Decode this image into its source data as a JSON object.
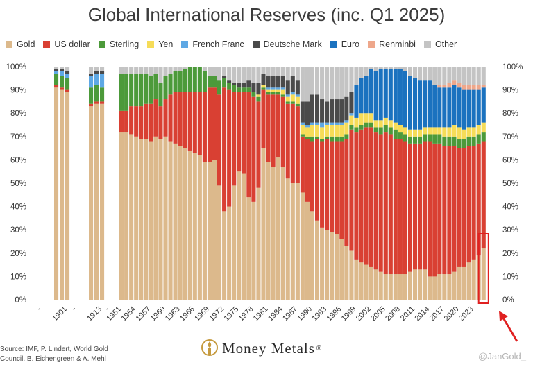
{
  "title": "Global International Reserves (inc. Q1 2025)",
  "source_line1": "Source: IMF, P. Lindert, World Gold",
  "source_line2": "Council, B. Eichengreen & A. Mehl",
  "brand": "Money Metals",
  "brand_mark": "®",
  "watermark": "@JanGold_",
  "chart_data": {
    "type": "bar",
    "stacked": true,
    "ylim": [
      0,
      100
    ],
    "yticks": [
      "0%",
      "10%",
      "20%",
      "30%",
      "40%",
      "50%",
      "60%",
      "70%",
      "80%",
      "90%",
      "100%"
    ],
    "xtick_labels": [
      "-",
      "1901",
      "-",
      "1913",
      "-",
      "1951",
      "1954",
      "1957",
      "1960",
      "1963",
      "1966",
      "1969",
      "1972",
      "1975",
      "1978",
      "1981",
      "1984",
      "1987",
      "1990",
      "1993",
      "1996",
      "1999",
      "2002",
      "2005",
      "2008",
      "2011",
      "2014",
      "2017",
      "2020",
      "2023"
    ],
    "legend": [
      {
        "name": "Gold",
        "color": "#dcb98c"
      },
      {
        "name": "US dollar",
        "color": "#d94033"
      },
      {
        "name": "Sterling",
        "color": "#4c9a3a"
      },
      {
        "name": "Yen",
        "color": "#f6dc58"
      },
      {
        "name": "French Franc",
        "color": "#5ea8e4"
      },
      {
        "name": "Deutsche Mark",
        "color": "#4a4a4a"
      },
      {
        "name": "Euro",
        "color": "#1b72bf"
      },
      {
        "name": "Renminbi",
        "color": "#eea78b"
      },
      {
        "name": "Other",
        "color": "#c4c4c4"
      }
    ],
    "series_order": [
      "Gold",
      "US dollar",
      "Sterling",
      "Yen",
      "French Franc",
      "Deutsche Mark",
      "Euro",
      "Renminbi",
      "Other"
    ],
    "highlight": {
      "category": "2025",
      "shape": "red box and arrow"
    },
    "bars": [
      {
        "year": "1899",
        "values": [
          91,
          1,
          5,
          0,
          1,
          1,
          0,
          0,
          1
        ]
      },
      {
        "year": "1900",
        "values": [
          90,
          1,
          5,
          0,
          2,
          1,
          0,
          0,
          1
        ]
      },
      {
        "year": "1901",
        "values": [
          89,
          1,
          5,
          0,
          2,
          1,
          0,
          0,
          2
        ]
      },
      {
        "year": "1911",
        "values": [
          83,
          1,
          7,
          0,
          5,
          1,
          0,
          0,
          3
        ]
      },
      {
        "year": "1912",
        "values": [
          84,
          1,
          7,
          0,
          5,
          1,
          0,
          0,
          2
        ]
      },
      {
        "year": "1913",
        "values": [
          84,
          1,
          6,
          0,
          6,
          1,
          0,
          0,
          2
        ]
      },
      {
        "year": "1951",
        "values": [
          72,
          9,
          16,
          0,
          0,
          0,
          0,
          0,
          3
        ]
      },
      {
        "year": "1952",
        "values": [
          72,
          9,
          16,
          0,
          0,
          0,
          0,
          0,
          3
        ]
      },
      {
        "year": "1953",
        "values": [
          71,
          12,
          14,
          0,
          0,
          0,
          0,
          0,
          3
        ]
      },
      {
        "year": "1954",
        "values": [
          70,
          13,
          14,
          0,
          0,
          0,
          0,
          0,
          3
        ]
      },
      {
        "year": "1955",
        "values": [
          69,
          14,
          14,
          0,
          0,
          0,
          0,
          0,
          3
        ]
      },
      {
        "year": "1956",
        "values": [
          69,
          15,
          13,
          0,
          0,
          0,
          0,
          0,
          3
        ]
      },
      {
        "year": "1957",
        "values": [
          68,
          16,
          12,
          0,
          0,
          0,
          0,
          0,
          4
        ]
      },
      {
        "year": "1958",
        "values": [
          70,
          16,
          11,
          0,
          0,
          0,
          0,
          0,
          3
        ]
      },
      {
        "year": "1959",
        "values": [
          69,
          14,
          10,
          0,
          0,
          0,
          0,
          0,
          7
        ]
      },
      {
        "year": "1960",
        "values": [
          70,
          16,
          10,
          0,
          0,
          0,
          0,
          0,
          4
        ]
      },
      {
        "year": "1961",
        "values": [
          68,
          20,
          9,
          0,
          0,
          0,
          0,
          0,
          3
        ]
      },
      {
        "year": "1962",
        "values": [
          67,
          22,
          9,
          0,
          0,
          0,
          0,
          0,
          2
        ]
      },
      {
        "year": "1963",
        "values": [
          66,
          23,
          9,
          0,
          0,
          0,
          0,
          0,
          2
        ]
      },
      {
        "year": "1964",
        "values": [
          65,
          24,
          10,
          0,
          0,
          0,
          0,
          0,
          1
        ]
      },
      {
        "year": "1965",
        "values": [
          64,
          25,
          11,
          0,
          0,
          0,
          0,
          0,
          0
        ]
      },
      {
        "year": "1966",
        "values": [
          63,
          26,
          11,
          0,
          0,
          0,
          0,
          0,
          0
        ]
      },
      {
        "year": "1967",
        "values": [
          62,
          27,
          11,
          0,
          0,
          0,
          0,
          0,
          0
        ]
      },
      {
        "year": "1968",
        "values": [
          59,
          30,
          9,
          0,
          0,
          0,
          0,
          0,
          2
        ]
      },
      {
        "year": "1969",
        "values": [
          59,
          32,
          5,
          0,
          0,
          0,
          0,
          0,
          4
        ]
      },
      {
        "year": "1970",
        "values": [
          60,
          31,
          5,
          0,
          0,
          0,
          0,
          0,
          4
        ]
      },
      {
        "year": "1971",
        "values": [
          49,
          39,
          6,
          0,
          0,
          0,
          0,
          0,
          6
        ]
      },
      {
        "year": "1972",
        "values": [
          38,
          53,
          4,
          0,
          0,
          1,
          0,
          0,
          4
        ]
      },
      {
        "year": "1973",
        "values": [
          40,
          50,
          3,
          0,
          0,
          1,
          0,
          0,
          6
        ]
      },
      {
        "year": "1974",
        "values": [
          49,
          40,
          3,
          0,
          0,
          1,
          0,
          0,
          7
        ]
      },
      {
        "year": "1975",
        "values": [
          55,
          34,
          2,
          0,
          0,
          2,
          0,
          0,
          7
        ]
      },
      {
        "year": "1976",
        "values": [
          54,
          35,
          2,
          0,
          0,
          2,
          0,
          0,
          7
        ]
      },
      {
        "year": "1977",
        "values": [
          44,
          45,
          2,
          0,
          0,
          3,
          0,
          0,
          6
        ]
      },
      {
        "year": "1978",
        "values": [
          42,
          45,
          2,
          0,
          0,
          4,
          0,
          0,
          7
        ]
      },
      {
        "year": "1979",
        "values": [
          48,
          37,
          2,
          1,
          0,
          5,
          0,
          0,
          7
        ]
      },
      {
        "year": "1980",
        "values": [
          65,
          25,
          1,
          1,
          0,
          5,
          0,
          0,
          3
        ]
      },
      {
        "year": "1981",
        "values": [
          59,
          29,
          1,
          1,
          1,
          5,
          0,
          0,
          4
        ]
      },
      {
        "year": "1982",
        "values": [
          57,
          31,
          1,
          1,
          1,
          5,
          0,
          0,
          4
        ]
      },
      {
        "year": "1983",
        "values": [
          61,
          27,
          1,
          1,
          1,
          5,
          0,
          0,
          4
        ]
      },
      {
        "year": "1984",
        "values": [
          57,
          30,
          1,
          2,
          1,
          5,
          0,
          0,
          4
        ]
      },
      {
        "year": "1985",
        "values": [
          52,
          32,
          1,
          2,
          1,
          6,
          0,
          0,
          6
        ]
      },
      {
        "year": "1986",
        "values": [
          50,
          34,
          1,
          3,
          1,
          7,
          0,
          0,
          4
        ]
      },
      {
        "year": "1987",
        "values": [
          50,
          33,
          1,
          3,
          1,
          6,
          0,
          0,
          6
        ]
      },
      {
        "year": "1988",
        "values": [
          46,
          24,
          1,
          4,
          1,
          9,
          0,
          0,
          15
        ]
      },
      {
        "year": "1989",
        "values": [
          42,
          27,
          1,
          4,
          1,
          10,
          0,
          0,
          15
        ]
      },
      {
        "year": "1990",
        "values": [
          38,
          30,
          2,
          5,
          1,
          12,
          0,
          0,
          12
        ]
      },
      {
        "year": "1991",
        "values": [
          34,
          35,
          1,
          5,
          1,
          12,
          0,
          0,
          12
        ]
      },
      {
        "year": "1992",
        "values": [
          31,
          37,
          1,
          5,
          2,
          10,
          0,
          0,
          14
        ]
      },
      {
        "year": "1993",
        "values": [
          30,
          39,
          1,
          5,
          1,
          9,
          0,
          0,
          15
        ]
      },
      {
        "year": "1994",
        "values": [
          29,
          39,
          2,
          5,
          1,
          10,
          0,
          0,
          14
        ]
      },
      {
        "year": "1995",
        "values": [
          28,
          40,
          2,
          5,
          1,
          10,
          0,
          0,
          14
        ]
      },
      {
        "year": "1996",
        "values": [
          26,
          42,
          2,
          5,
          1,
          10,
          0,
          0,
          14
        ]
      },
      {
        "year": "1997",
        "values": [
          23,
          46,
          2,
          5,
          1,
          10,
          0,
          0,
          13
        ]
      },
      {
        "year": "1998",
        "values": [
          21,
          52,
          2,
          4,
          1,
          9,
          0,
          0,
          11
        ]
      },
      {
        "year": "1999",
        "values": [
          17,
          55,
          2,
          4,
          0,
          0,
          14,
          0,
          8
        ]
      },
      {
        "year": "2000",
        "values": [
          16,
          57,
          2,
          5,
          0,
          0,
          15,
          0,
          5
        ]
      },
      {
        "year": "2001",
        "values": [
          15,
          59,
          2,
          4,
          0,
          0,
          16,
          0,
          4
        ]
      },
      {
        "year": "2002",
        "values": [
          14,
          60,
          2,
          4,
          0,
          0,
          19,
          0,
          1
        ]
      },
      {
        "year": "2003",
        "values": [
          13,
          59,
          2,
          3,
          0,
          0,
          21,
          0,
          2
        ]
      },
      {
        "year": "2004",
        "values": [
          12,
          59,
          3,
          3,
          0,
          0,
          22,
          0,
          1
        ]
      },
      {
        "year": "2005",
        "values": [
          11,
          61,
          3,
          3,
          0,
          0,
          21,
          0,
          1
        ]
      },
      {
        "year": "2006",
        "values": [
          11,
          60,
          3,
          3,
          0,
          0,
          22,
          0,
          1
        ]
      },
      {
        "year": "2007",
        "values": [
          11,
          58,
          4,
          3,
          0,
          0,
          23,
          0,
          1
        ]
      },
      {
        "year": "2008",
        "values": [
          11,
          58,
          3,
          3,
          0,
          0,
          24,
          0,
          1
        ]
      },
      {
        "year": "2009",
        "values": [
          11,
          57,
          3,
          3,
          0,
          0,
          24,
          0,
          2
        ]
      },
      {
        "year": "2010",
        "values": [
          12,
          55,
          3,
          3,
          0,
          0,
          23,
          0,
          4
        ]
      },
      {
        "year": "2011",
        "values": [
          13,
          54,
          3,
          3,
          0,
          0,
          22,
          0,
          5
        ]
      },
      {
        "year": "2012",
        "values": [
          13,
          54,
          3,
          3,
          0,
          0,
          21,
          0,
          6
        ]
      },
      {
        "year": "2013",
        "values": [
          13,
          55,
          3,
          3,
          0,
          0,
          20,
          0,
          6
        ]
      },
      {
        "year": "2014",
        "values": [
          10,
          58,
          3,
          3,
          0,
          0,
          20,
          0,
          6
        ]
      },
      {
        "year": "2015",
        "values": [
          10,
          57,
          4,
          3,
          0,
          0,
          18,
          0,
          8
        ]
      },
      {
        "year": "2016",
        "values": [
          11,
          56,
          4,
          3,
          0,
          0,
          17,
          1,
          8
        ]
      },
      {
        "year": "2017",
        "values": [
          11,
          55,
          4,
          4,
          0,
          0,
          17,
          1,
          8
        ]
      },
      {
        "year": "2018",
        "values": [
          11,
          55,
          4,
          4,
          0,
          0,
          17,
          2,
          7
        ]
      },
      {
        "year": "2019",
        "values": [
          12,
          54,
          4,
          5,
          0,
          0,
          17,
          2,
          6
        ]
      },
      {
        "year": "2020",
        "values": [
          14,
          51,
          4,
          5,
          0,
          0,
          17,
          2,
          7
        ]
      },
      {
        "year": "2021",
        "values": [
          14,
          51,
          4,
          4,
          0,
          0,
          17,
          2,
          8
        ]
      },
      {
        "year": "2022",
        "values": [
          16,
          50,
          4,
          4,
          0,
          0,
          16,
          2,
          8
        ]
      },
      {
        "year": "2023",
        "values": [
          17,
          49,
          4,
          4,
          0,
          0,
          16,
          2,
          8
        ]
      },
      {
        "year": "2024",
        "values": [
          19,
          48,
          4,
          4,
          0,
          0,
          15,
          2,
          8
        ]
      },
      {
        "year": "2025",
        "values": [
          22,
          46,
          4,
          4,
          0,
          0,
          15,
          1,
          8
        ]
      }
    ]
  }
}
